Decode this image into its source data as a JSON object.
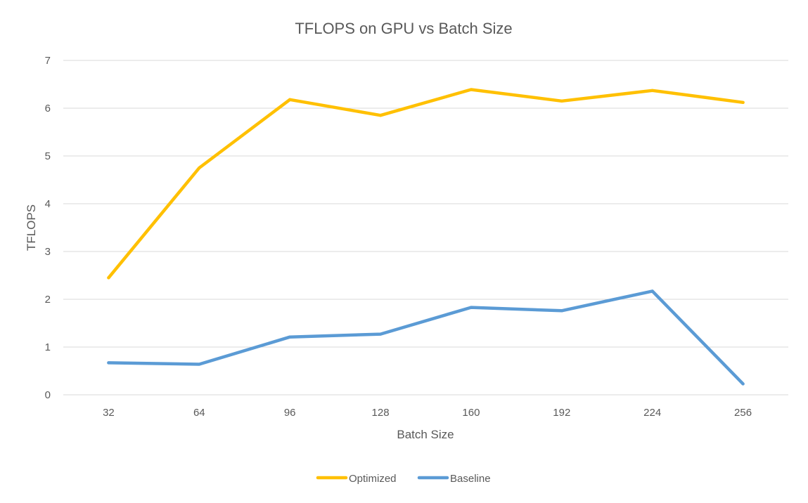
{
  "chart_data": {
    "type": "line",
    "title": "TFLOPS on GPU vs Batch Size",
    "xlabel": "Batch Size",
    "ylabel": "TFLOPS",
    "categories": [
      "32",
      "64",
      "96",
      "128",
      "160",
      "192",
      "224",
      "256"
    ],
    "ylim": [
      0,
      7
    ],
    "yticks": [
      0,
      1,
      2,
      3,
      4,
      5,
      6,
      7
    ],
    "grid": true,
    "legend": "bottom",
    "series": [
      {
        "name": "Optimized",
        "color": "#FFC000",
        "values": [
          2.45,
          4.75,
          6.18,
          5.85,
          6.39,
          6.15,
          6.37,
          6.12
        ]
      },
      {
        "name": "Baseline",
        "color": "#5B9BD5",
        "values": [
          0.67,
          0.64,
          1.21,
          1.27,
          1.83,
          1.76,
          2.17,
          0.23
        ]
      }
    ]
  }
}
